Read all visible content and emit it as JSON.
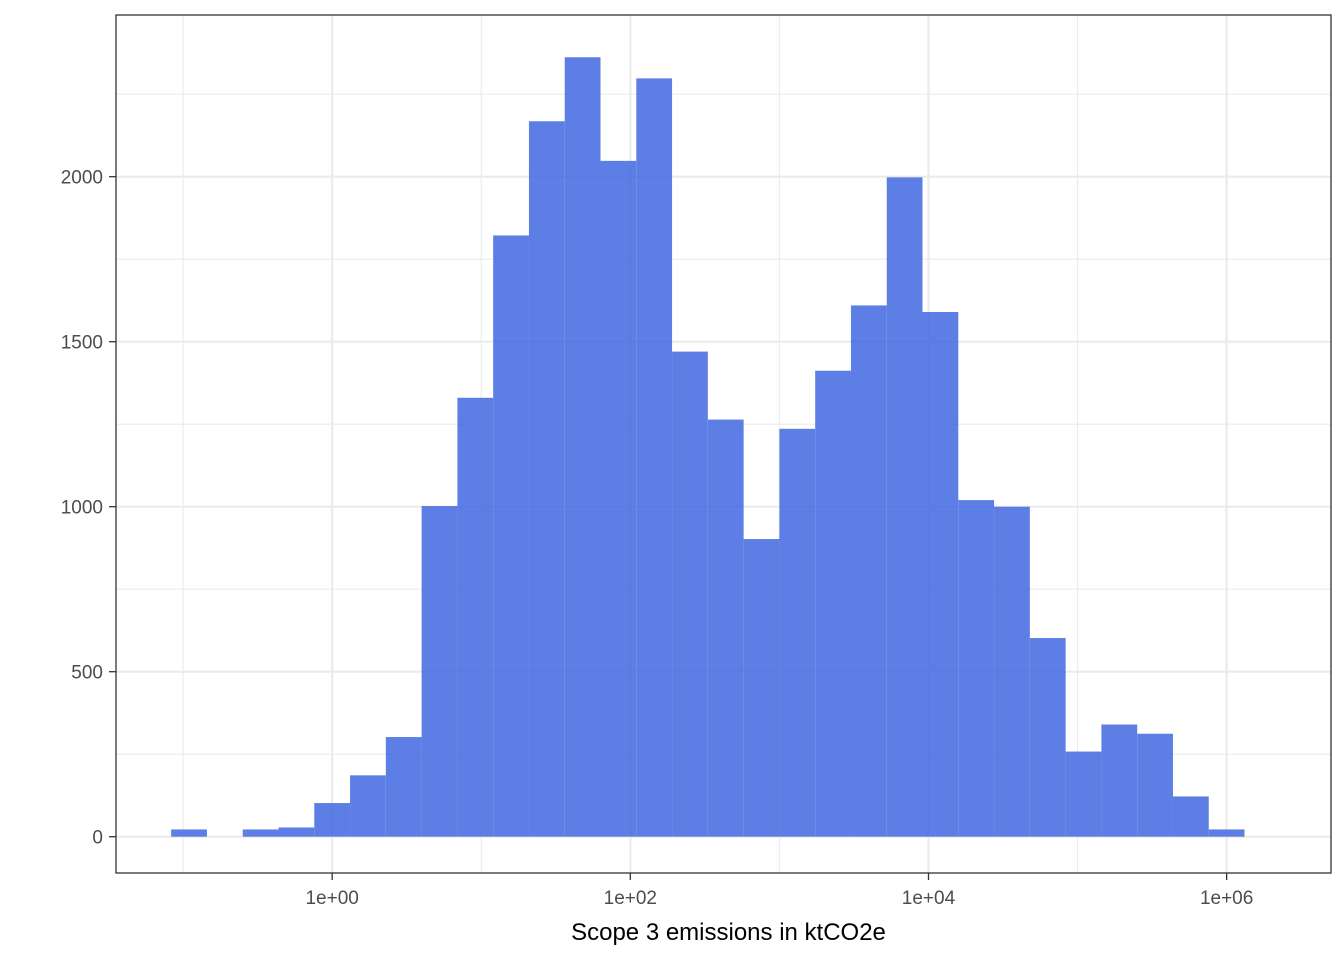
{
  "chart_data": {
    "type": "bar",
    "title": "",
    "xlabel": "Scope 3 emissions in ktCO2e",
    "ylabel": "",
    "x_scale": "log10",
    "x_log10_range": [
      -1.45,
      6.7
    ],
    "ylim": [
      -110,
      2490
    ],
    "grid": true,
    "bar_color": "#4169E1",
    "bar_opacity": 0.85,
    "bin_width_log10": 0.24,
    "x_ticks": [
      {
        "log10": 0,
        "label": "1e+00"
      },
      {
        "log10": 2,
        "label": "1e+02"
      },
      {
        "log10": 4,
        "label": "1e+04"
      },
      {
        "log10": 6,
        "label": "1e+06"
      }
    ],
    "y_ticks": [
      {
        "value": 0,
        "label": "0"
      },
      {
        "value": 500,
        "label": "500"
      },
      {
        "value": 1000,
        "label": "1000"
      },
      {
        "value": 1500,
        "label": "1500"
      },
      {
        "value": 2000,
        "label": "2000"
      }
    ],
    "bins": [
      {
        "log10_center": -0.96,
        "count": 22
      },
      {
        "log10_center": -0.72,
        "count": 0
      },
      {
        "log10_center": -0.48,
        "count": 22
      },
      {
        "log10_center": -0.24,
        "count": 28
      },
      {
        "log10_center": 0.0,
        "count": 102
      },
      {
        "log10_center": 0.24,
        "count": 186
      },
      {
        "log10_center": 0.48,
        "count": 302
      },
      {
        "log10_center": 0.72,
        "count": 1002
      },
      {
        "log10_center": 0.96,
        "count": 1330
      },
      {
        "log10_center": 1.2,
        "count": 1822
      },
      {
        "log10_center": 1.44,
        "count": 2168
      },
      {
        "log10_center": 1.68,
        "count": 2362
      },
      {
        "log10_center": 1.92,
        "count": 2048
      },
      {
        "log10_center": 2.16,
        "count": 2298
      },
      {
        "log10_center": 2.4,
        "count": 1470
      },
      {
        "log10_center": 2.64,
        "count": 1264
      },
      {
        "log10_center": 2.88,
        "count": 902
      },
      {
        "log10_center": 3.12,
        "count": 1236
      },
      {
        "log10_center": 3.36,
        "count": 1412
      },
      {
        "log10_center": 3.6,
        "count": 1610
      },
      {
        "log10_center": 3.84,
        "count": 1998
      },
      {
        "log10_center": 4.08,
        "count": 1590
      },
      {
        "log10_center": 4.32,
        "count": 1020
      },
      {
        "log10_center": 4.56,
        "count": 1000
      },
      {
        "log10_center": 4.8,
        "count": 602
      },
      {
        "log10_center": 5.04,
        "count": 258
      },
      {
        "log10_center": 5.28,
        "count": 340
      },
      {
        "log10_center": 5.52,
        "count": 312
      },
      {
        "log10_center": 5.76,
        "count": 122
      },
      {
        "log10_center": 6.0,
        "count": 22
      }
    ]
  }
}
